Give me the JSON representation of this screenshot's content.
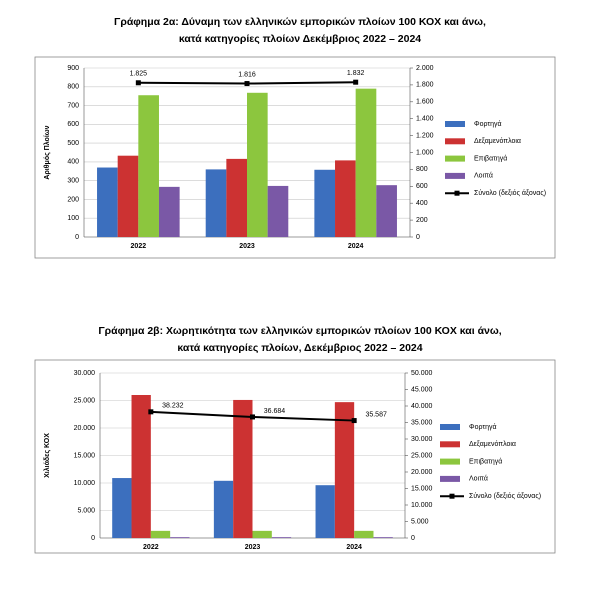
{
  "chart_data": [
    {
      "type": "bar",
      "title": [
        "Γράφημα 2α: Δύναμη των ελληνικών εμπορικών πλοίων 100 ΚΟΧ και άνω,",
        "κατά κατηγορίες πλοίων Δεκέμβριος 2022 – 2024"
      ],
      "ylabel": "Αριθμός Πλοίων",
      "categories": [
        "2022",
        "2023",
        "2024"
      ],
      "ylim": [
        0,
        900
      ],
      "yticks": [
        0,
        100,
        200,
        300,
        400,
        500,
        600,
        700,
        800,
        900
      ],
      "y2lim": [
        0,
        2000
      ],
      "y2ticks": [
        0,
        200,
        400,
        600,
        800,
        {
          "value": 1000,
          "label": "1.000"
        },
        {
          "value": 1200,
          "label": "1.200"
        },
        {
          "value": 1400,
          "label": "1.400"
        },
        {
          "value": 1600,
          "label": "1.600"
        },
        {
          "value": 1800,
          "label": "1.800"
        },
        {
          "value": 2000,
          "label": "2.000"
        }
      ],
      "grid": true,
      "series": [
        {
          "name": "Φορτηγά",
          "color": "#3c6fbe",
          "values": [
            370,
            360,
            358
          ]
        },
        {
          "name": "Δεξαμενόπλοια",
          "color": "#cc3232",
          "values": [
            433,
            416,
            408
          ]
        },
        {
          "name": "Επιβατηγά",
          "color": "#8cc63e",
          "values": [
            755,
            768,
            790
          ]
        },
        {
          "name": "Λοιπά",
          "color": "#7a58a6",
          "values": [
            267,
            272,
            276
          ]
        },
        {
          "name": "Σύνολο (δεξιός άξονας)",
          "color": "#000000",
          "type": "line",
          "axis": "y2",
          "values": [
            1825,
            1816,
            1832
          ],
          "value_labels": [
            "1.825",
            "1.816",
            "1.832"
          ]
        }
      ]
    },
    {
      "type": "bar",
      "title": [
        "Γράφημα 2β: Χωρητικότητα των ελληνικών εμπορικών πλοίων 100 ΚΟΧ και άνω,",
        "κατά κατηγορίες πλοίων, Δεκέμβριος 2022 – 2024"
      ],
      "ylabel": "Χιλιάδες ΚΟΧ",
      "categories": [
        "2022",
        "2023",
        "2024"
      ],
      "ylim": [
        0,
        30000
      ],
      "yticks": [
        0,
        {
          "value": 5000,
          "label": "5.000"
        },
        {
          "value": 10000,
          "label": "10.000"
        },
        {
          "value": 15000,
          "label": "15.000"
        },
        {
          "value": 20000,
          "label": "20.000"
        },
        {
          "value": 25000,
          "label": "25.000"
        },
        {
          "value": 30000,
          "label": "30.000"
        }
      ],
      "y2lim": [
        0,
        50000
      ],
      "y2ticks": [
        0,
        {
          "value": 5000,
          "label": "5.000"
        },
        {
          "value": 10000,
          "label": "10.000"
        },
        {
          "value": 15000,
          "label": "15.000"
        },
        {
          "value": 20000,
          "label": "20.000"
        },
        {
          "value": 25000,
          "label": "25.000"
        },
        {
          "value": 30000,
          "label": "30.000"
        },
        {
          "value": 35000,
          "label": "35.000"
        },
        {
          "value": 40000,
          "label": "40.000"
        },
        {
          "value": 45000,
          "label": "45.000"
        },
        {
          "value": 50000,
          "label": "50.000"
        }
      ],
      "grid": true,
      "series": [
        {
          "name": "Φορτηγά",
          "color": "#3c6fbe",
          "values": [
            10900,
            10400,
            9600
          ]
        },
        {
          "name": "Δεξαμενόπλοια",
          "color": "#cc3232",
          "values": [
            26000,
            25100,
            24700
          ]
        },
        {
          "name": "Επιβατηγά",
          "color": "#8cc63e",
          "values": [
            1300,
            1300,
            1300
          ]
        },
        {
          "name": "Λοιπά",
          "color": "#7a58a6",
          "values": [
            150,
            150,
            150
          ]
        },
        {
          "name": "Σύνολο (δεξιός άξονας)",
          "color": "#000000",
          "type": "line",
          "axis": "y2",
          "values": [
            38232,
            36684,
            35587
          ],
          "value_labels": [
            "38.232",
            "36.684",
            "35.587"
          ]
        }
      ]
    }
  ]
}
